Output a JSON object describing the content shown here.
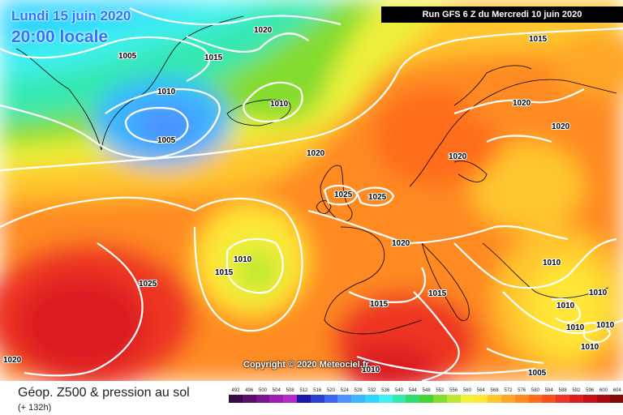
{
  "header": {
    "date_line": "Lundi 15 juin 2020",
    "time_line": "20:00 locale",
    "run_info": "Run GFS 6 Z du Mercredi 10 juin 2020"
  },
  "copyright": "Copyright © 2020 Meteociel.fr",
  "footer": {
    "title": "Géop. Z500 & pression au sol",
    "forecast_hour": "(+ 132h)"
  },
  "legend": {
    "values": [
      "492",
      "496",
      "500",
      "504",
      "508",
      "512",
      "516",
      "520",
      "524",
      "528",
      "532",
      "536",
      "540",
      "544",
      "548",
      "552",
      "556",
      "560",
      "564",
      "568",
      "572",
      "576",
      "580",
      "584",
      "588",
      "592",
      "596",
      "600",
      "604",
      "608",
      "612"
    ],
    "colors": [
      "#3a0a45",
      "#5a0f6a",
      "#7a168e",
      "#9b20b0",
      "#b42bc8",
      "#1a1aa8",
      "#2b3fd0",
      "#3f66ef",
      "#4d90ff",
      "#3bb5ff",
      "#2fd5ff",
      "#3ff0f0",
      "#36e8b0",
      "#2fdc6e",
      "#49d236",
      "#84dc2e",
      "#bce832",
      "#eef03a",
      "#ffe536",
      "#ffc62e",
      "#ffa628",
      "#ff8a22",
      "#ff6c1e",
      "#f9501e",
      "#ee3424",
      "#dc1e22",
      "#c81218",
      "#a80c10",
      "#840a0a",
      "#5e0606",
      "#3a0404"
    ]
  },
  "isobars": [
    {
      "value": "1020",
      "pos": "greenland-north"
    },
    {
      "value": "1015",
      "pos": "norwegian-sea"
    },
    {
      "value": "1005",
      "pos": "greenland-west"
    },
    {
      "value": "1015",
      "pos": "greenland-east"
    },
    {
      "value": "1010",
      "pos": "denmark-strait"
    },
    {
      "value": "1010",
      "pos": "iceland"
    },
    {
      "value": "1005",
      "pos": "low-center"
    },
    {
      "value": "1020",
      "pos": "scandinavia-north"
    },
    {
      "value": "1020",
      "pos": "finland"
    },
    {
      "value": "1020",
      "pos": "atlantic"
    },
    {
      "value": "1020",
      "pos": "baltic"
    },
    {
      "value": "1025",
      "pos": "ireland"
    },
    {
      "value": "1025",
      "pos": "north-sea"
    },
    {
      "value": "1020",
      "pos": "france"
    },
    {
      "value": "1010",
      "pos": "azores-low"
    },
    {
      "value": "1015",
      "pos": "azores-west"
    },
    {
      "value": "1025",
      "pos": "atlantic-south"
    },
    {
      "value": "1015",
      "pos": "iberia"
    },
    {
      "value": "1015",
      "pos": "mediterranean"
    },
    {
      "value": "1010",
      "pos": "balkans"
    },
    {
      "value": "1010",
      "pos": "black-sea"
    },
    {
      "value": "1010",
      "pos": "turkey-north"
    },
    {
      "value": "1010",
      "pos": "turkey"
    },
    {
      "value": "1010",
      "pos": "levant"
    },
    {
      "value": "1010",
      "pos": "cyprus"
    },
    {
      "value": "1010",
      "pos": "algeria"
    },
    {
      "value": "1005",
      "pos": "libya"
    },
    {
      "value": "1020",
      "pos": "atlantic-southwest"
    }
  ]
}
